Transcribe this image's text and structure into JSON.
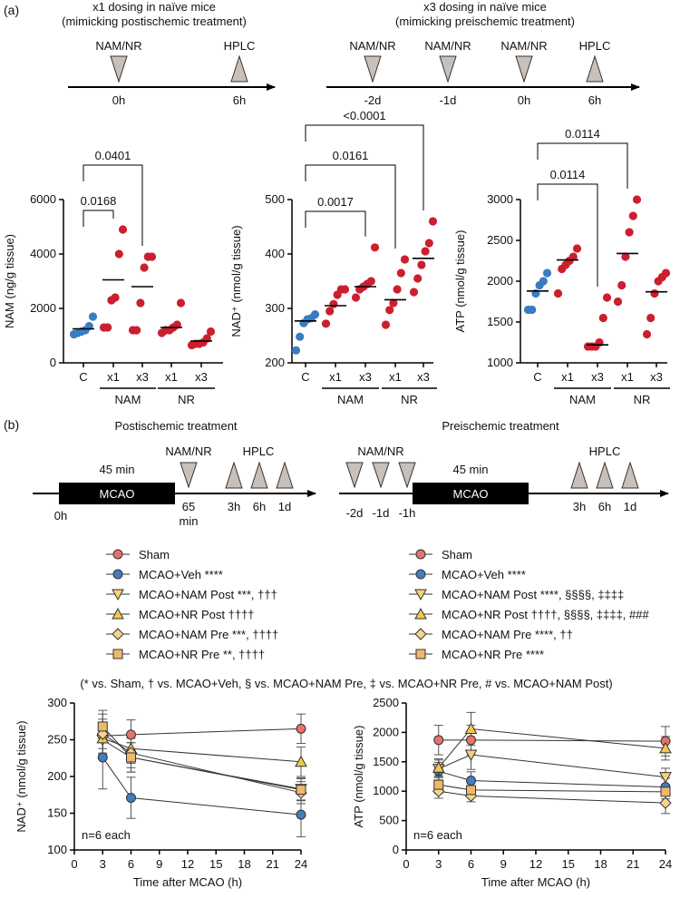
{
  "colors": {
    "sham": "#e8716a",
    "veh": "#3f7fbf",
    "red": "#cc1f2e",
    "blue": "#3a7cc1",
    "tri": "#c8c0bb",
    "nampost": "#f4d27a",
    "nrpost": "#f2c84b",
    "nampre": "#f6d58a",
    "nrpre": "#f0b86a"
  },
  "panel_a": {
    "label": "(a)",
    "left_title_1": "x1 dosing in naïve mice",
    "left_title_2": "(mimicking postischemic treatment)",
    "right_title_1": "x3 dosing in naïve mice",
    "right_title_2": "(mimicking preischemic treatment)",
    "left_timeline": [
      {
        "label": "NAM/NR",
        "time": "0h",
        "kind": "down"
      },
      {
        "label": "HPLC",
        "time": "6h",
        "kind": "up"
      }
    ],
    "right_timeline": [
      {
        "label": "NAM/NR",
        "time": "-2d",
        "kind": "down"
      },
      {
        "label": "NAM/NR",
        "time": "-1d",
        "kind": "down"
      },
      {
        "label": "NAM/NR",
        "time": "0h",
        "kind": "down"
      },
      {
        "label": "HPLC",
        "time": "6h",
        "kind": "up"
      }
    ]
  },
  "panel_b": {
    "label": "(b)",
    "post_title": "Postischemic treatment",
    "pre_title": "Preischemic treatment",
    "post": {
      "duration": "45 min",
      "block": "MCAO",
      "start": "0h",
      "drug": "NAM/NR",
      "drug_time_1": "65",
      "drug_time_2": "min",
      "hplc": "HPLC",
      "times": [
        "3h",
        "6h",
        "1d"
      ]
    },
    "pre": {
      "drug": "NAM/NR",
      "times_pre": [
        "-2d",
        "-1d",
        "-1h"
      ],
      "duration": "45 min",
      "block": "MCAO",
      "hplc": "HPLC",
      "times": [
        "3h",
        "6h",
        "1d"
      ]
    },
    "legend_left": [
      {
        "label": "Sham",
        "marker": "circle",
        "color": "#e8716a"
      },
      {
        "label": "MCAO+Veh ****",
        "marker": "circle",
        "color": "#3f7fbf"
      },
      {
        "label": "MCAO+NAM Post ***, †††",
        "marker": "tri-down",
        "color": "#f4d27a"
      },
      {
        "label": "MCAO+NR Post ††††",
        "marker": "tri-up",
        "color": "#f2c84b"
      },
      {
        "label": "MCAO+NAM Pre ***, ††††",
        "marker": "diamond",
        "color": "#f6d58a"
      },
      {
        "label": "MCAO+NR Pre **, ††††",
        "marker": "square",
        "color": "#f0b86a"
      }
    ],
    "legend_right": [
      {
        "label": "Sham",
        "marker": "circle",
        "color": "#e8716a"
      },
      {
        "label": "MCAO+Veh ****",
        "marker": "circle",
        "color": "#3f7fbf"
      },
      {
        "label": "MCAO+NAM Post ****, §§§§, ‡‡‡‡",
        "marker": "tri-down",
        "color": "#f4d27a"
      },
      {
        "label": "MCAO+NR Post ††††, §§§§, ‡‡‡‡, ###",
        "marker": "tri-up",
        "color": "#f2c84b"
      },
      {
        "label": "MCAO+NAM Pre ****, ††",
        "marker": "diamond",
        "color": "#f6d58a"
      },
      {
        "label": "MCAO+NR Pre ****",
        "marker": "square",
        "color": "#f0b86a"
      }
    ],
    "footnote": "(* vs. Sham, † vs. MCAO+Veh, § vs. MCAO+NAM Pre, ‡ vs. MCAO+NR Pre, # vs. MCAO+NAM Post)"
  },
  "chart_data": [
    {
      "type": "scatter",
      "title": "NAM",
      "ylabel": "NAM (ng/g tissue)",
      "ylim": [
        0,
        6000
      ],
      "yticks": [
        0,
        2000,
        4000,
        6000
      ],
      "categories": [
        "C",
        "x1",
        "x3",
        "x1",
        "x3"
      ],
      "groups": [
        {
          "label": "NAM",
          "from": 1,
          "to": 2
        },
        {
          "label": "NR",
          "from": 3,
          "to": 4
        }
      ],
      "points": [
        [
          1050,
          1100,
          1150,
          1200,
          1350,
          1700
        ],
        [
          1300,
          1300,
          2300,
          2400,
          4000,
          4900
        ],
        [
          1200,
          1200,
          2200,
          3500,
          3900,
          3900
        ],
        [
          1100,
          1200,
          1200,
          1300,
          1400,
          2200
        ],
        [
          650,
          700,
          700,
          750,
          900,
          1150
        ]
      ],
      "means": [
        1250,
        3050,
        2800,
        1300,
        800
      ],
      "brackets": [
        {
          "from": 0,
          "to": 1,
          "label": "0.0168"
        },
        {
          "from": 0,
          "to": 2,
          "label": "0.0401"
        }
      ]
    },
    {
      "type": "scatter",
      "title": "NAD",
      "ylabel": "NAD⁺ (nmol/g tissue)",
      "ylim": [
        200,
        500
      ],
      "yticks": [
        200,
        300,
        400,
        500
      ],
      "categories": [
        "C",
        "x1",
        "x3",
        "x1",
        "x3"
      ],
      "groups": [
        {
          "label": "NAM",
          "from": 1,
          "to": 2
        },
        {
          "label": "NR",
          "from": 3,
          "to": 4
        }
      ],
      "points": [
        [
          223,
          248,
          273,
          280,
          282,
          289
        ],
        [
          272,
          295,
          308,
          325,
          335,
          335
        ],
        [
          320,
          335,
          340,
          345,
          350,
          412
        ],
        [
          270,
          297,
          310,
          335,
          365,
          390
        ],
        [
          330,
          355,
          380,
          405,
          420,
          460
        ]
      ],
      "means": [
        277,
        305,
        340,
        316,
        392
      ],
      "brackets": [
        {
          "from": 0,
          "to": 2,
          "label": "0.0017"
        },
        {
          "from": 0,
          "to": 3,
          "label": "0.0161"
        },
        {
          "from": 0,
          "to": 4,
          "label": "<0.0001"
        }
      ]
    },
    {
      "type": "scatter",
      "title": "ATP",
      "ylabel": "ATP (nmol/g tissue)",
      "ylim": [
        1000,
        3000
      ],
      "yticks": [
        1000,
        1500,
        2000,
        2500,
        3000
      ],
      "categories": [
        "C",
        "x1",
        "x3",
        "x1",
        "x3"
      ],
      "groups": [
        {
          "label": "NAM",
          "from": 1,
          "to": 2
        },
        {
          "label": "NR",
          "from": 3,
          "to": 4
        }
      ],
      "points": [
        [
          1650,
          1650,
          1850,
          1950,
          2000,
          2100
        ],
        [
          1850,
          2150,
          2200,
          2250,
          2300,
          2400
        ],
        [
          1200,
          1200,
          1200,
          1250,
          1550,
          1800
        ],
        [
          1750,
          1950,
          2300,
          2600,
          2800,
          3000
        ],
        [
          1350,
          1550,
          1850,
          2000,
          2050,
          2100
        ]
      ],
      "means": [
        1880,
        2260,
        1220,
        2340,
        1870
      ],
      "brackets": [
        {
          "from": 0,
          "to": 2,
          "label": "0.0114"
        },
        {
          "from": 0,
          "to": 3,
          "label": "0.0114"
        }
      ]
    },
    {
      "type": "line",
      "ylabel": "NAD⁺ (nmol/g tissue)",
      "xlabel": "Time after MCAO (h)",
      "note": "n=6 each",
      "xlim": [
        0,
        24
      ],
      "ylim": [
        100,
        300
      ],
      "xticks": [
        0,
        3,
        6,
        9,
        12,
        15,
        18,
        21,
        24
      ],
      "yticks": [
        100,
        150,
        200,
        250,
        300
      ],
      "x": [
        3,
        6,
        24
      ],
      "series": [
        {
          "name": "Sham",
          "marker": "circle",
          "color": "#e8716a",
          "values": [
            255,
            257,
            265
          ],
          "err": [
            30,
            20,
            20
          ]
        },
        {
          "name": "MCAO+Veh",
          "marker": "circle",
          "color": "#3f7fbf",
          "values": [
            226,
            171,
            148
          ],
          "err": [
            43,
            28,
            30
          ]
        },
        {
          "name": "MCAO+NAM Post",
          "marker": "tri-down",
          "color": "#f4d27a",
          "values": [
            250,
            226,
            183
          ],
          "err": [
            20,
            20,
            15
          ]
        },
        {
          "name": "MCAO+NR Post",
          "marker": "tri-up",
          "color": "#f2c84b",
          "values": [
            252,
            238,
            220
          ],
          "err": [
            20,
            20,
            20
          ]
        },
        {
          "name": "MCAO+NAM Pre",
          "marker": "diamond",
          "color": "#f6d58a",
          "values": [
            258,
            232,
            178
          ],
          "err": [
            20,
            20,
            15
          ]
        },
        {
          "name": "MCAO+NR Pre",
          "marker": "square",
          "color": "#f0b86a",
          "values": [
            268,
            226,
            182
          ],
          "err": [
            22,
            20,
            15
          ]
        }
      ]
    },
    {
      "type": "line",
      "ylabel": "ATP (nmol/g tissue)",
      "xlabel": "Time after MCAO (h)",
      "note": "n=6 each",
      "xlim": [
        0,
        24
      ],
      "ylim": [
        0,
        2500
      ],
      "xticks": [
        0,
        3,
        6,
        9,
        12,
        15,
        18,
        21,
        24
      ],
      "yticks": [
        0,
        500,
        1000,
        1500,
        2000,
        2500
      ],
      "x": [
        3,
        6,
        24
      ],
      "series": [
        {
          "name": "Sham",
          "marker": "circle",
          "color": "#e8716a",
          "values": [
            1870,
            1870,
            1850
          ],
          "err": [
            250,
            250,
            250
          ]
        },
        {
          "name": "MCAO+Veh",
          "marker": "circle",
          "color": "#3f7fbf",
          "values": [
            1340,
            1180,
            1070
          ],
          "err": [
            150,
            150,
            150
          ]
        },
        {
          "name": "MCAO+NAM Post",
          "marker": "tri-down",
          "color": "#f4d27a",
          "values": [
            1380,
            1620,
            1240
          ],
          "err": [
            150,
            250,
            150
          ]
        },
        {
          "name": "MCAO+NR Post",
          "marker": "tri-up",
          "color": "#f2c84b",
          "values": [
            1400,
            2060,
            1730
          ],
          "err": [
            150,
            280,
            200
          ]
        },
        {
          "name": "MCAO+NAM Pre",
          "marker": "diamond",
          "color": "#f6d58a",
          "values": [
            1000,
            920,
            800
          ],
          "err": [
            120,
            100,
            180
          ]
        },
        {
          "name": "MCAO+NR Pre",
          "marker": "square",
          "color": "#f0b86a",
          "values": [
            1110,
            1020,
            990
          ],
          "err": [
            150,
            120,
            120
          ]
        }
      ]
    }
  ]
}
